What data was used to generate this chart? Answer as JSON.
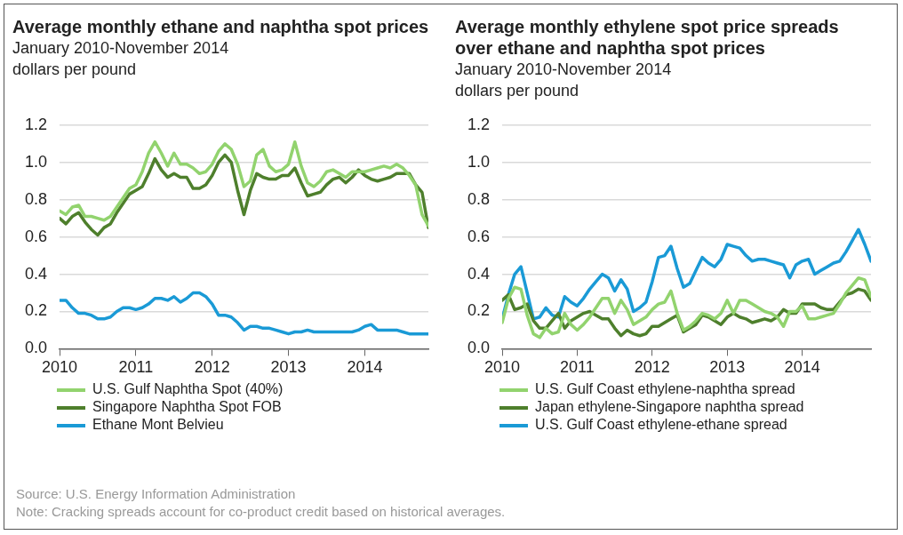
{
  "chart_data": [
    {
      "type": "line",
      "title": "Average monthly ethane and naphtha spot prices",
      "subtitle": "January 2010-November 2014",
      "ylabel": "dollars per pound",
      "x": [
        "2010-01",
        "2010-02",
        "2010-03",
        "2010-04",
        "2010-05",
        "2010-06",
        "2010-07",
        "2010-08",
        "2010-09",
        "2010-10",
        "2010-11",
        "2010-12",
        "2011-01",
        "2011-02",
        "2011-03",
        "2011-04",
        "2011-05",
        "2011-06",
        "2011-07",
        "2011-08",
        "2011-09",
        "2011-10",
        "2011-11",
        "2011-12",
        "2012-01",
        "2012-02",
        "2012-03",
        "2012-04",
        "2012-05",
        "2012-06",
        "2012-07",
        "2012-08",
        "2012-09",
        "2012-10",
        "2012-11",
        "2012-12",
        "2013-01",
        "2013-02",
        "2013-03",
        "2013-04",
        "2013-05",
        "2013-06",
        "2013-07",
        "2013-08",
        "2013-09",
        "2013-10",
        "2013-11",
        "2013-12",
        "2014-01",
        "2014-02",
        "2014-03",
        "2014-04",
        "2014-05",
        "2014-06",
        "2014-07",
        "2014-08",
        "2014-09",
        "2014-10",
        "2014-11"
      ],
      "series": [
        {
          "name": "U.S. Gulf Naphtha Spot (40%)",
          "color": "#92d36e",
          "values": [
            0.74,
            0.72,
            0.76,
            0.77,
            0.71,
            0.71,
            0.7,
            0.69,
            0.71,
            0.76,
            0.81,
            0.86,
            0.88,
            0.95,
            1.05,
            1.11,
            1.05,
            0.98,
            1.05,
            0.99,
            0.99,
            0.97,
            0.94,
            0.95,
            0.99,
            1.06,
            1.1,
            1.07,
            0.99,
            0.87,
            0.9,
            1.04,
            1.07,
            0.98,
            0.95,
            0.96,
            0.99,
            1.11,
            0.98,
            0.89,
            0.87,
            0.9,
            0.95,
            0.96,
            0.94,
            0.92,
            0.95,
            0.95,
            0.95,
            0.96,
            0.97,
            0.98,
            0.97,
            0.99,
            0.97,
            0.93,
            0.88,
            0.72,
            0.66
          ]
        },
        {
          "name": "Singapore Naphtha Spot FOB",
          "color": "#4e7f2c",
          "values": [
            0.7,
            0.67,
            0.71,
            0.73,
            0.68,
            0.64,
            0.61,
            0.65,
            0.67,
            0.73,
            0.78,
            0.83,
            0.85,
            0.87,
            0.94,
            1.02,
            0.96,
            0.92,
            0.94,
            0.92,
            0.92,
            0.86,
            0.86,
            0.88,
            0.93,
            1.0,
            1.04,
            1.0,
            0.85,
            0.72,
            0.85,
            0.94,
            0.92,
            0.91,
            0.91,
            0.93,
            0.93,
            0.97,
            0.89,
            0.82,
            0.83,
            0.84,
            0.88,
            0.91,
            0.92,
            0.89,
            0.92,
            0.96,
            0.93,
            0.91,
            0.9,
            0.91,
            0.92,
            0.94,
            0.94,
            0.94,
            0.88,
            0.84,
            0.65
          ]
        },
        {
          "name": "Ethane Mont Belvieu",
          "color": "#1a9ad6",
          "values": [
            0.26,
            0.26,
            0.22,
            0.19,
            0.19,
            0.18,
            0.16,
            0.16,
            0.17,
            0.2,
            0.22,
            0.22,
            0.21,
            0.22,
            0.24,
            0.27,
            0.27,
            0.26,
            0.28,
            0.25,
            0.27,
            0.3,
            0.3,
            0.28,
            0.24,
            0.18,
            0.18,
            0.17,
            0.14,
            0.1,
            0.12,
            0.12,
            0.11,
            0.11,
            0.1,
            0.09,
            0.08,
            0.09,
            0.09,
            0.1,
            0.09,
            0.09,
            0.09,
            0.09,
            0.09,
            0.09,
            0.09,
            0.1,
            0.12,
            0.13,
            0.1,
            0.1,
            0.1,
            0.1,
            0.09,
            0.08,
            0.08,
            0.08,
            0.08
          ]
        }
      ],
      "xlim": [
        "2010-01",
        "2014-11"
      ],
      "xticks": [
        "2010",
        "2011",
        "2012",
        "2013",
        "2014"
      ],
      "ylim": [
        0,
        1.2
      ],
      "yticks": [
        {
          "value": 0,
          "label": "0.0"
        },
        {
          "value": 0.2,
          "label": "0.2"
        },
        {
          "value": 0.4,
          "label": "0.4"
        },
        {
          "value": 0.6,
          "label": "0.6"
        },
        {
          "value": 0.8,
          "label": "0.8"
        },
        {
          "value": 1,
          "label": "1.0"
        },
        {
          "value": 1.2,
          "label": "1.2"
        }
      ],
      "grid": "y",
      "legend": "bottom"
    },
    {
      "type": "line",
      "title": "Average monthly ethylene spot price spreads over ethane and naphtha spot prices",
      "subtitle": "January 2010-November 2014",
      "ylabel": "dollars per pound",
      "x": [
        "2010-01",
        "2010-02",
        "2010-03",
        "2010-04",
        "2010-05",
        "2010-06",
        "2010-07",
        "2010-08",
        "2010-09",
        "2010-10",
        "2010-11",
        "2010-12",
        "2011-01",
        "2011-02",
        "2011-03",
        "2011-04",
        "2011-05",
        "2011-06",
        "2011-07",
        "2011-08",
        "2011-09",
        "2011-10",
        "2011-11",
        "2011-12",
        "2012-01",
        "2012-02",
        "2012-03",
        "2012-04",
        "2012-05",
        "2012-06",
        "2012-07",
        "2012-08",
        "2012-09",
        "2012-10",
        "2012-11",
        "2012-12",
        "2013-01",
        "2013-02",
        "2013-03",
        "2013-04",
        "2013-05",
        "2013-06",
        "2013-07",
        "2013-08",
        "2013-09",
        "2013-10",
        "2013-11",
        "2013-12",
        "2014-01",
        "2014-02",
        "2014-03",
        "2014-04",
        "2014-05",
        "2014-06",
        "2014-07",
        "2014-08",
        "2014-09",
        "2014-10",
        "2014-11",
        "2014-12"
      ],
      "series": [
        {
          "name": "U.S. Gulf Coast ethylene-naphtha spread",
          "color": "#92d36e",
          "values": [
            0.14,
            0.27,
            0.33,
            0.32,
            0.18,
            0.08,
            0.06,
            0.11,
            0.08,
            0.09,
            0.19,
            0.13,
            0.1,
            0.13,
            0.17,
            0.22,
            0.27,
            0.27,
            0.19,
            0.26,
            0.21,
            0.13,
            0.15,
            0.17,
            0.21,
            0.24,
            0.25,
            0.31,
            0.19,
            0.1,
            0.12,
            0.15,
            0.19,
            0.18,
            0.16,
            0.19,
            0.26,
            0.19,
            0.26,
            0.26,
            0.24,
            0.22,
            0.2,
            0.19,
            0.17,
            0.12,
            0.2,
            0.2,
            0.23,
            0.16,
            0.16,
            0.17,
            0.18,
            0.19,
            0.24,
            0.3,
            0.34,
            0.38,
            0.37,
            0.28
          ]
        },
        {
          "name": "Japan ethylene-Singapore naphtha spread",
          "color": "#4e7f2c",
          "values": [
            0.26,
            0.29,
            0.21,
            0.22,
            0.24,
            0.15,
            0.11,
            0.11,
            0.15,
            0.19,
            0.11,
            0.15,
            0.17,
            0.19,
            0.2,
            0.18,
            0.16,
            0.16,
            0.11,
            0.07,
            0.1,
            0.08,
            0.07,
            0.08,
            0.12,
            0.12,
            0.14,
            0.16,
            0.18,
            0.09,
            0.11,
            0.13,
            0.18,
            0.17,
            0.15,
            0.13,
            0.17,
            0.19,
            0.17,
            0.16,
            0.14,
            0.15,
            0.16,
            0.15,
            0.17,
            0.21,
            0.19,
            0.19,
            0.24,
            0.24,
            0.24,
            0.22,
            0.21,
            0.21,
            0.25,
            0.29,
            0.3,
            0.32,
            0.31,
            0.26
          ]
        },
        {
          "name": "U.S. Gulf Coast ethylene-ethane spread",
          "color": "#1a9ad6",
          "values": [
            0.16,
            0.29,
            0.4,
            0.44,
            0.3,
            0.16,
            0.17,
            0.22,
            0.18,
            0.17,
            0.28,
            0.25,
            0.23,
            0.27,
            0.32,
            0.36,
            0.4,
            0.38,
            0.31,
            0.37,
            0.32,
            0.2,
            0.22,
            0.25,
            0.36,
            0.49,
            0.5,
            0.55,
            0.43,
            0.33,
            0.35,
            0.42,
            0.49,
            0.46,
            0.44,
            0.48,
            0.56,
            0.55,
            0.54,
            0.5,
            0.47,
            0.48,
            0.48,
            0.47,
            0.46,
            0.45,
            0.38,
            0.45,
            0.47,
            0.48,
            0.4,
            0.42,
            0.44,
            0.46,
            0.47,
            0.52,
            0.58,
            0.64,
            0.56,
            0.47
          ]
        }
      ],
      "xlim": [
        "2010-01",
        "2014-12"
      ],
      "xticks": [
        "2010",
        "2011",
        "2012",
        "2013",
        "2014"
      ],
      "ylim": [
        0,
        1.2
      ],
      "yticks": [
        {
          "value": 0,
          "label": "0.0"
        },
        {
          "value": 0.2,
          "label": "0.2"
        },
        {
          "value": 0.4,
          "label": "0.4"
        },
        {
          "value": 0.6,
          "label": "0.6"
        },
        {
          "value": 0.8,
          "label": "0.8"
        },
        {
          "value": 1,
          "label": "1.0"
        },
        {
          "value": 1.2,
          "label": "1.2"
        }
      ],
      "grid": "y",
      "legend": "bottom",
      "annotations": [
        "Source: U.S. Energy Information Administration",
        "Note: Cracking spreads account for co-product credit based on historical averages."
      ]
    }
  ]
}
